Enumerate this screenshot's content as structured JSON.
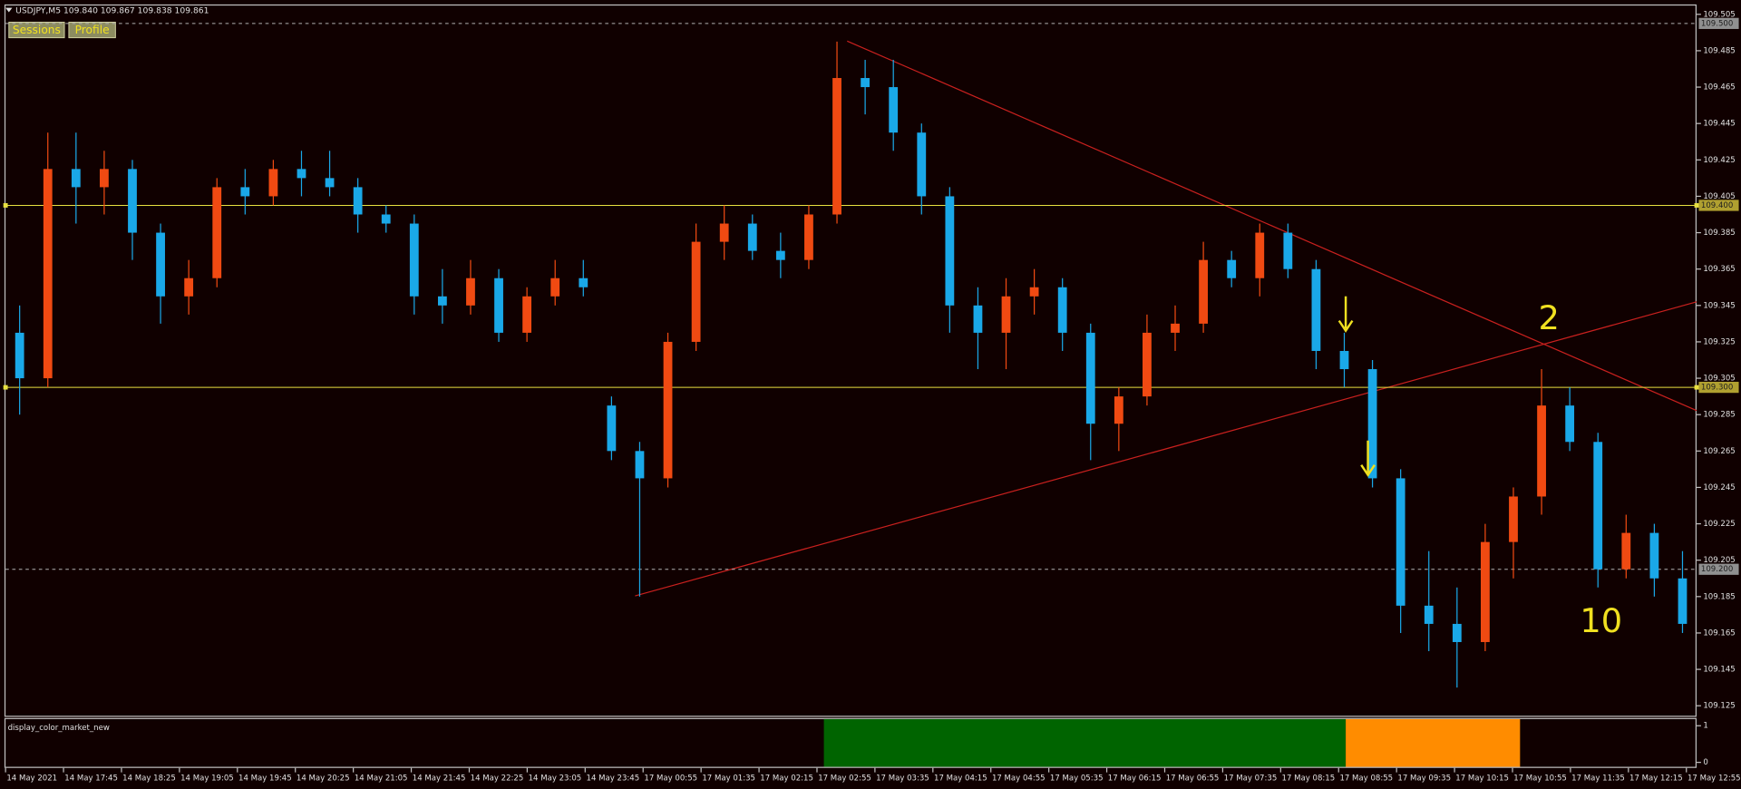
{
  "chart_data": [
    {
      "type": "candlestick",
      "title": "USDJPY,M5  109.840 109.867 109.838 109.861",
      "buttons": [
        "Sessions",
        "Profile"
      ],
      "up_color": "#f04a12",
      "down_color": "#1aa8e8",
      "background": "#100000",
      "ylim": [
        109.1195,
        109.508
      ],
      "yticks": [
        109.125,
        109.145,
        109.165,
        109.185,
        109.205,
        109.225,
        109.245,
        109.265,
        109.285,
        109.305,
        109.325,
        109.345,
        109.365,
        109.385,
        109.405,
        109.425,
        109.445,
        109.465,
        109.485,
        109.505
      ],
      "levels": [
        {
          "value": 109.5,
          "label": "109.500"
        },
        {
          "value": 109.4,
          "label": "109.400"
        },
        {
          "value": 109.3,
          "label": "109.300"
        },
        {
          "value": 109.2,
          "label": "109.200"
        }
      ],
      "level_colors": [
        "#b0b0b0",
        "#e8e040",
        "#e8e040",
        "#b0b0b0"
      ],
      "x_labels": [
        "14 May 2021",
        "14 May 17:45",
        "14 May 18:25",
        "14 May 19:05",
        "14 May 19:45",
        "14 May 20:25",
        "14 May 21:05",
        "14 May 21:45",
        "14 May 22:25",
        "14 May 23:05",
        "14 May 23:45",
        "17 May 00:55",
        "17 May 01:35",
        "17 May 02:15",
        "17 May 02:55",
        "17 May 03:35",
        "17 May 04:15",
        "17 May 04:55",
        "17 May 05:35",
        "17 May 06:15",
        "17 May 06:55",
        "17 May 07:35",
        "17 May 08:15",
        "17 May 08:55",
        "17 May 09:35",
        "17 May 10:15",
        "17 May 10:55",
        "17 May 11:35",
        "17 May 12:15",
        "17 May 12:55"
      ],
      "open": [
        109.33,
        109.305,
        109.42,
        109.41,
        109.42,
        109.385,
        109.35,
        109.36,
        109.41,
        109.405,
        109.42,
        109.415,
        109.41,
        109.395,
        109.39,
        109.35,
        109.345,
        109.36,
        109.33,
        109.35,
        109.36,
        109.29,
        109.265,
        109.25,
        109.325,
        109.38,
        109.39,
        109.375,
        109.37,
        109.395,
        109.47,
        109.465,
        109.44,
        109.405,
        109.345,
        109.33,
        109.35,
        109.355,
        109.33,
        109.28,
        109.295,
        109.33,
        109.335,
        109.37,
        109.36,
        109.385,
        109.365,
        109.32,
        109.31,
        109.25,
        109.18,
        109.17,
        109.16,
        109.215,
        109.24,
        109.29,
        109.27,
        109.2,
        109.22,
        109.195
      ],
      "high": [
        109.345,
        109.44,
        109.44,
        109.43,
        109.425,
        109.39,
        109.37,
        109.415,
        109.42,
        109.425,
        109.43,
        109.43,
        109.415,
        109.4,
        109.395,
        109.365,
        109.37,
        109.365,
        109.355,
        109.37,
        109.37,
        109.295,
        109.27,
        109.33,
        109.39,
        109.4,
        109.395,
        109.385,
        109.4,
        109.49,
        109.48,
        109.48,
        109.445,
        109.41,
        109.355,
        109.36,
        109.365,
        109.36,
        109.335,
        109.3,
        109.34,
        109.345,
        109.38,
        109.375,
        109.39,
        109.39,
        109.37,
        109.33,
        109.315,
        109.255,
        109.21,
        109.19,
        109.225,
        109.245,
        109.31,
        109.3,
        109.275,
        109.23,
        109.225,
        109.21
      ],
      "low": [
        109.285,
        109.3,
        109.39,
        109.395,
        109.37,
        109.335,
        109.34,
        109.355,
        109.395,
        109.4,
        109.405,
        109.405,
        109.385,
        109.385,
        109.34,
        109.335,
        109.34,
        109.325,
        109.325,
        109.345,
        109.35,
        109.26,
        109.185,
        109.245,
        109.32,
        109.37,
        109.37,
        109.36,
        109.365,
        109.39,
        109.45,
        109.43,
        109.395,
        109.33,
        109.31,
        109.31,
        109.34,
        109.32,
        109.26,
        109.265,
        109.29,
        109.32,
        109.33,
        109.355,
        109.35,
        109.36,
        109.31,
        109.3,
        109.245,
        109.165,
        109.155,
        109.135,
        109.155,
        109.195,
        109.23,
        109.265,
        109.19,
        109.195,
        109.185,
        109.165
      ],
      "close": [
        109.305,
        109.42,
        109.41,
        109.42,
        109.385,
        109.35,
        109.36,
        109.41,
        109.405,
        109.42,
        109.415,
        109.41,
        109.395,
        109.39,
        109.35,
        109.345,
        109.36,
        109.33,
        109.35,
        109.36,
        109.355,
        109.265,
        109.25,
        109.325,
        109.38,
        109.39,
        109.375,
        109.37,
        109.395,
        109.47,
        109.465,
        109.44,
        109.405,
        109.345,
        109.33,
        109.35,
        109.355,
        109.33,
        109.28,
        109.295,
        109.33,
        109.335,
        109.37,
        109.36,
        109.385,
        109.365,
        109.32,
        109.31,
        109.25,
        109.18,
        109.17,
        109.16,
        109.215,
        109.24,
        109.29,
        109.27,
        109.2,
        109.22,
        109.195,
        109.17
      ],
      "annotations": [
        "2",
        "10"
      ]
    },
    {
      "type": "indicator",
      "title": "display_color_market_new",
      "ylim": [
        0,
        1
      ],
      "yticks": [
        0,
        1
      ]
    }
  ]
}
